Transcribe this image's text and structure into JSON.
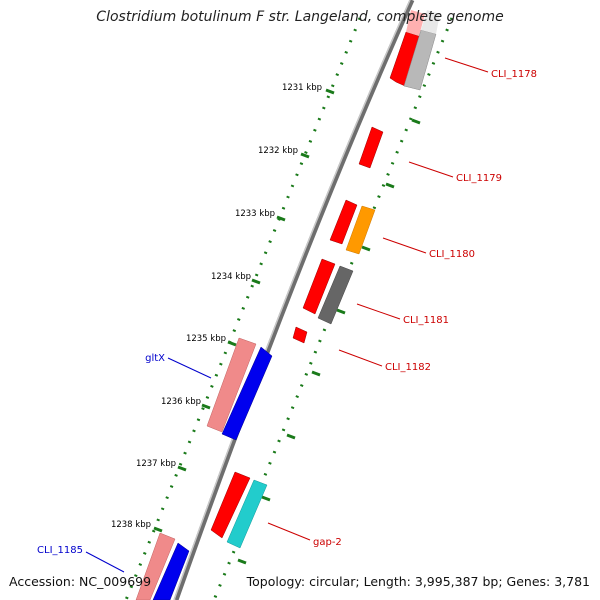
{
  "title": "Clostridium botulinum F str. Langeland, complete genome",
  "accession_text": "Accession: NC_009699",
  "topology_text": "Topology: circular; Length: 3,995,387 bp; Genes: 3,781",
  "kbp_ticks": [
    "1231 kbp",
    "1232 kbp",
    "1233 kbp",
    "1234 kbp",
    "1235 kbp",
    "1236 kbp",
    "1237 kbp",
    "1238 kbp"
  ],
  "gene_labels": [
    {
      "text": "CLI_1178",
      "color": "#cc0000"
    },
    {
      "text": "CLI_1179",
      "color": "#cc0000"
    },
    {
      "text": "CLI_1180",
      "color": "#cc0000"
    },
    {
      "text": "CLI_1181",
      "color": "#cc0000"
    },
    {
      "text": "CLI_1182",
      "color": "#cc0000"
    },
    {
      "text": "gltX",
      "color": "#0000cc"
    },
    {
      "text": "gap-2",
      "color": "#cc0000"
    },
    {
      "text": "CLI_1185",
      "color": "#0000cc"
    }
  ],
  "colors": {
    "backbone": "#7a7a7a",
    "tick_green": "#1a7a1a",
    "cds_red": "#ff0000",
    "rrna_pink": "#f08a8a",
    "trna_blue": "#0000ee",
    "orange": "#ff9900",
    "gray": "#8a8a8a",
    "cyan": "#22cccc"
  }
}
